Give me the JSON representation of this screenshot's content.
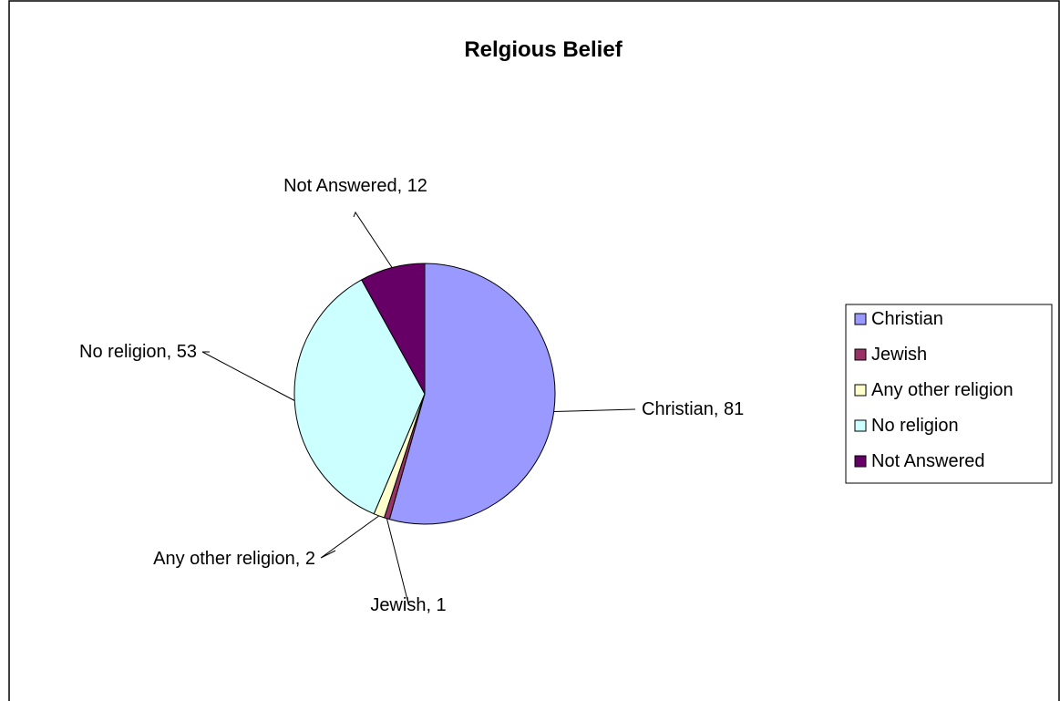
{
  "chart_data": {
    "type": "pie",
    "title": "Relgious Belief",
    "categories": [
      "Christian",
      "Jewish",
      "Any other religion",
      "No religion",
      "Not Answered"
    ],
    "values": [
      81,
      1,
      2,
      53,
      12
    ],
    "colors": [
      "#9999FF",
      "#993366",
      "#FFFFCC",
      "#CCFFFF",
      "#660066"
    ],
    "data_labels": [
      "Christian, 81",
      "Jewish, 1",
      "Any other religion, 2",
      "No religion, 53",
      "Not Answered, 12"
    ],
    "legend": {
      "position": "right",
      "entries": [
        "Christian",
        "Jewish",
        "Any other religion",
        "No religion",
        "Not Answered"
      ]
    },
    "start_angle_deg": 0,
    "direction": "clockwise"
  }
}
